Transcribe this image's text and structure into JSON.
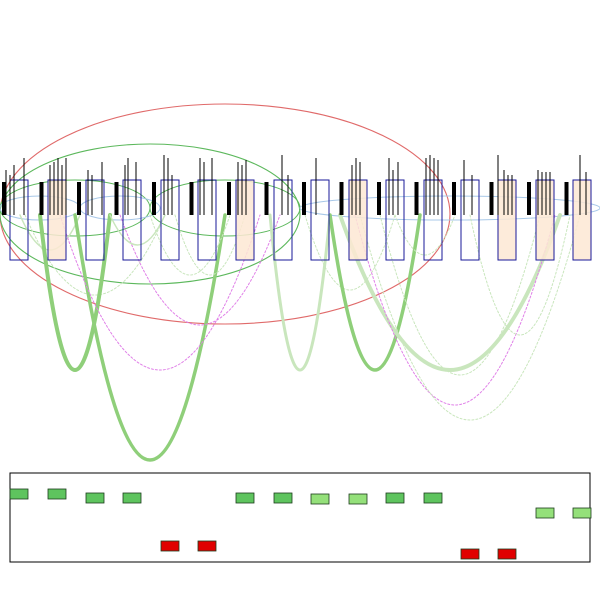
{
  "colors": {
    "background": "#ffffff",
    "box_stroke": "#1a1a99",
    "box_fill_highlight": "#fde8d4",
    "ellipse_red": "#e06a6a",
    "ellipse_green": "#5cb85c",
    "ellipse_blue": "#a8c8e8",
    "arc_green_thick": "#8fcf7a",
    "arc_green_pale": "#c9e6bd",
    "arc_magenta": "#e080e8",
    "tick_black": "#000000",
    "panel_border": "#000000",
    "chip_green_dark": "#5ec45e",
    "chip_green_light": "#94e07a",
    "chip_red": "#e00000"
  },
  "elements": {
    "box_count": 16,
    "highlighted_boxes": [
      1,
      6,
      9,
      13,
      14,
      15
    ],
    "ellipse_count": 7,
    "arc_count": 18,
    "chip_count": 16
  }
}
